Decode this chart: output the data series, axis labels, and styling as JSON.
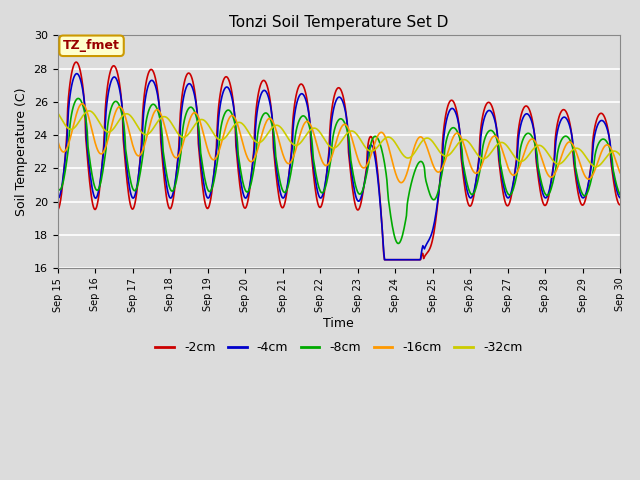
{
  "title": "Tonzi Soil Temperature Set D",
  "xlabel": "Time",
  "ylabel": "Soil Temperature (C)",
  "ylim": [
    16,
    30
  ],
  "xlim": [
    0,
    15
  ],
  "x_tick_labels": [
    "Sep 15",
    "Sep 16",
    "Sep 17",
    "Sep 18",
    "Sep 19",
    "Sep 20",
    "Sep 21",
    "Sep 22",
    "Sep 23",
    "Sep 24",
    "Sep 25",
    "Sep 26",
    "Sep 27",
    "Sep 28",
    "Sep 29",
    "Sep 30"
  ],
  "annotation": "TZ_fmet",
  "line_colors": [
    "#cc0000",
    "#0000cc",
    "#00aa00",
    "#ff9900",
    "#cccc00"
  ],
  "line_labels": [
    "-2cm",
    "-4cm",
    "-8cm",
    "-16cm",
    "-32cm"
  ],
  "background_color": "#dcdcdc",
  "plot_bg_color": "#dcdcdc",
  "title_fontsize": 11,
  "axis_fontsize": 9,
  "grid_color": "#ffffff",
  "annotation_bg": "#ffffcc",
  "annotation_border": "#cc9900"
}
